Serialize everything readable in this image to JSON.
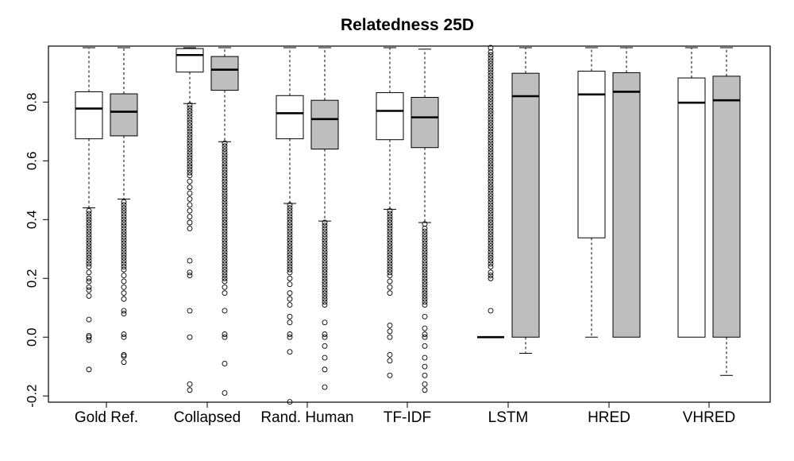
{
  "chart_data": {
    "type": "boxplot",
    "title": "Relatedness 25D",
    "xlabel": "",
    "ylabel": "",
    "ylim": [
      -0.205,
      0.985
    ],
    "yticks": [
      -0.2,
      0.0,
      0.2,
      0.4,
      0.6,
      0.8
    ],
    "ytick_labels": [
      "-0.2",
      "0.0",
      "0.2",
      "0.4",
      "0.6",
      "0.8"
    ],
    "categories": [
      "Gold Ref.",
      "Collapsed",
      "Rand. Human",
      "TF-IDF",
      "LSTM",
      "HRED",
      "VHRED"
    ],
    "series": [
      {
        "name": "white",
        "fill": "#ffffff"
      },
      {
        "name": "grey",
        "fill": "#bebebe"
      }
    ],
    "boxes": [
      {
        "category": "Gold Ref.",
        "series": "white",
        "whisker_low": 0.44,
        "q1": 0.675,
        "median": 0.778,
        "q3": 0.835,
        "whisker_high": 0.985,
        "outliers": [
          0.43,
          0.42,
          0.41,
          0.4,
          0.39,
          0.38,
          0.37,
          0.36,
          0.35,
          0.34,
          0.33,
          0.32,
          0.31,
          0.3,
          0.29,
          0.28,
          0.27,
          0.26,
          0.25,
          0.24,
          0.22,
          0.2,
          0.19,
          0.17,
          0.16,
          0.14,
          0.06,
          0.005,
          0.0,
          -0.01,
          -0.11
        ]
      },
      {
        "category": "Gold Ref.",
        "series": "grey",
        "whisker_low": 0.47,
        "q1": 0.685,
        "median": 0.767,
        "q3": 0.828,
        "whisker_high": 0.985,
        "outliers": [
          0.46,
          0.45,
          0.44,
          0.43,
          0.42,
          0.41,
          0.4,
          0.39,
          0.38,
          0.37,
          0.36,
          0.35,
          0.34,
          0.33,
          0.32,
          0.31,
          0.3,
          0.29,
          0.28,
          0.27,
          0.26,
          0.25,
          0.24,
          0.23,
          0.21,
          0.19,
          0.17,
          0.15,
          0.13,
          0.09,
          0.08,
          0.01,
          0.0,
          -0.06,
          -0.065,
          -0.085
        ]
      },
      {
        "category": "Collapsed",
        "series": "white",
        "whisker_low": 0.795,
        "q1": 0.902,
        "median": 0.96,
        "q3": 0.982,
        "whisker_high": 0.985,
        "outliers": [
          0.79,
          0.78,
          0.77,
          0.76,
          0.75,
          0.74,
          0.73,
          0.72,
          0.71,
          0.7,
          0.69,
          0.68,
          0.67,
          0.66,
          0.65,
          0.64,
          0.63,
          0.62,
          0.61,
          0.6,
          0.59,
          0.58,
          0.57,
          0.56,
          0.55,
          0.53,
          0.51,
          0.49,
          0.47,
          0.45,
          0.43,
          0.41,
          0.39,
          0.37,
          0.26,
          0.22,
          0.21,
          0.09,
          0.0,
          -0.16,
          -0.18
        ]
      },
      {
        "category": "Collapsed",
        "series": "grey",
        "whisker_low": 0.665,
        "q1": 0.84,
        "median": 0.91,
        "q3": 0.955,
        "whisker_high": 0.985,
        "outliers": [
          0.66,
          0.65,
          0.64,
          0.63,
          0.62,
          0.61,
          0.6,
          0.59,
          0.58,
          0.57,
          0.56,
          0.55,
          0.54,
          0.53,
          0.52,
          0.51,
          0.5,
          0.49,
          0.48,
          0.47,
          0.46,
          0.45,
          0.44,
          0.43,
          0.42,
          0.41,
          0.4,
          0.39,
          0.38,
          0.37,
          0.36,
          0.35,
          0.34,
          0.33,
          0.32,
          0.31,
          0.3,
          0.29,
          0.28,
          0.27,
          0.26,
          0.25,
          0.24,
          0.23,
          0.22,
          0.21,
          0.2,
          0.19,
          0.17,
          0.15,
          0.09,
          0.01,
          0.0,
          -0.09,
          -0.19
        ]
      },
      {
        "category": "Rand. Human",
        "series": "white",
        "whisker_low": 0.455,
        "q1": 0.675,
        "median": 0.762,
        "q3": 0.822,
        "whisker_high": 0.985,
        "outliers": [
          0.45,
          0.44,
          0.43,
          0.42,
          0.41,
          0.4,
          0.39,
          0.38,
          0.37,
          0.36,
          0.35,
          0.34,
          0.33,
          0.32,
          0.31,
          0.3,
          0.29,
          0.28,
          0.27,
          0.26,
          0.25,
          0.24,
          0.23,
          0.22,
          0.2,
          0.18,
          0.15,
          0.13,
          0.11,
          0.07,
          0.05,
          0.01,
          0.0,
          -0.05,
          -0.22
        ]
      },
      {
        "category": "Rand. Human",
        "series": "grey",
        "whisker_low": 0.395,
        "q1": 0.64,
        "median": 0.742,
        "q3": 0.806,
        "whisker_high": 0.985,
        "outliers": [
          0.39,
          0.38,
          0.37,
          0.36,
          0.35,
          0.34,
          0.33,
          0.32,
          0.31,
          0.3,
          0.29,
          0.28,
          0.27,
          0.26,
          0.25,
          0.24,
          0.23,
          0.22,
          0.21,
          0.2,
          0.19,
          0.18,
          0.17,
          0.16,
          0.15,
          0.14,
          0.13,
          0.12,
          0.11,
          0.05,
          0.01,
          0.0,
          -0.03,
          -0.07,
          -0.11,
          -0.17
        ]
      },
      {
        "category": "TF-IDF",
        "series": "white",
        "whisker_low": 0.435,
        "q1": 0.672,
        "median": 0.77,
        "q3": 0.832,
        "whisker_high": 0.985,
        "outliers": [
          0.43,
          0.42,
          0.41,
          0.4,
          0.39,
          0.38,
          0.37,
          0.36,
          0.35,
          0.34,
          0.33,
          0.32,
          0.31,
          0.3,
          0.29,
          0.28,
          0.27,
          0.26,
          0.25,
          0.24,
          0.23,
          0.22,
          0.21,
          0.19,
          0.17,
          0.15,
          0.04,
          0.02,
          0.0,
          -0.06,
          -0.08,
          -0.13
        ]
      },
      {
        "category": "TF-IDF",
        "series": "grey",
        "whisker_low": 0.39,
        "q1": 0.645,
        "median": 0.748,
        "q3": 0.816,
        "whisker_high": 0.98,
        "outliers": [
          0.385,
          0.37,
          0.36,
          0.35,
          0.34,
          0.33,
          0.32,
          0.31,
          0.3,
          0.29,
          0.28,
          0.27,
          0.26,
          0.25,
          0.24,
          0.23,
          0.22,
          0.21,
          0.2,
          0.19,
          0.18,
          0.17,
          0.16,
          0.15,
          0.14,
          0.13,
          0.12,
          0.11,
          0.07,
          0.03,
          0.01,
          0.0,
          -0.03,
          -0.07,
          -0.1,
          -0.13,
          -0.16,
          -0.18
        ]
      },
      {
        "category": "LSTM",
        "series": "white",
        "whisker_low": 0.0,
        "q1": 0.0,
        "median": 0.0,
        "q3": 0.0,
        "whisker_high": 0.0,
        "outliers": [
          0.985,
          0.97,
          0.96,
          0.95,
          0.94,
          0.93,
          0.92,
          0.91,
          0.9,
          0.89,
          0.88,
          0.87,
          0.86,
          0.85,
          0.84,
          0.83,
          0.82,
          0.81,
          0.8,
          0.79,
          0.78,
          0.77,
          0.76,
          0.75,
          0.74,
          0.73,
          0.72,
          0.71,
          0.7,
          0.69,
          0.68,
          0.67,
          0.66,
          0.65,
          0.64,
          0.63,
          0.62,
          0.61,
          0.6,
          0.59,
          0.58,
          0.57,
          0.56,
          0.55,
          0.54,
          0.53,
          0.52,
          0.51,
          0.5,
          0.49,
          0.48,
          0.47,
          0.46,
          0.45,
          0.44,
          0.43,
          0.42,
          0.41,
          0.4,
          0.39,
          0.38,
          0.37,
          0.36,
          0.35,
          0.34,
          0.33,
          0.32,
          0.31,
          0.3,
          0.29,
          0.28,
          0.27,
          0.26,
          0.25,
          0.24,
          0.22,
          0.21,
          0.2,
          0.09
        ]
      },
      {
        "category": "LSTM",
        "series": "grey",
        "whisker_low": -0.055,
        "q1": 0.0,
        "median": 0.82,
        "q3": 0.898,
        "whisker_high": 0.985,
        "outliers": []
      },
      {
        "category": "HRED",
        "series": "white",
        "whisker_low": 0.0,
        "q1": 0.338,
        "median": 0.826,
        "q3": 0.905,
        "whisker_high": 0.985,
        "outliers": []
      },
      {
        "category": "HRED",
        "series": "grey",
        "whisker_low": 0.0,
        "q1": 0.0,
        "median": 0.835,
        "q3": 0.9,
        "whisker_high": 0.985,
        "outliers": []
      },
      {
        "category": "VHRED",
        "series": "white",
        "whisker_low": 0.0,
        "q1": 0.0,
        "median": 0.798,
        "q3": 0.882,
        "whisker_high": 0.985,
        "outliers": []
      },
      {
        "category": "VHRED",
        "series": "grey",
        "whisker_low": -0.13,
        "q1": 0.0,
        "median": 0.806,
        "q3": 0.888,
        "whisker_high": 0.985,
        "outliers": []
      }
    ]
  }
}
